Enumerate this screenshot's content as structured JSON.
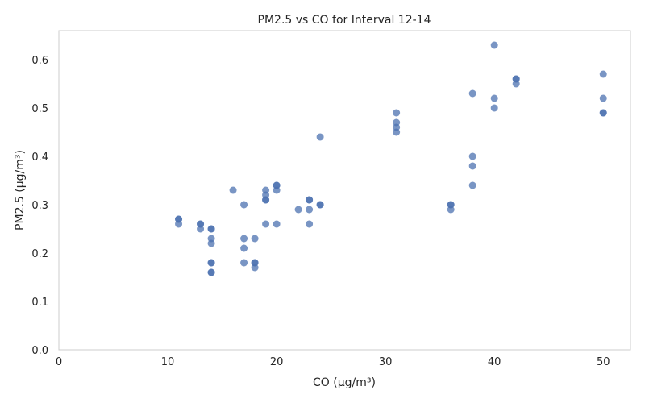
{
  "chart_data": {
    "type": "scatter",
    "title": "PM2.5 vs CO for Interval 12-14",
    "xlabel": "CO (µg/m³)",
    "ylabel": "PM2.5 (µg/m³)",
    "xlim": [
      0,
      52.5
    ],
    "ylim": [
      0,
      0.66
    ],
    "x_ticks": [
      0,
      10,
      20,
      30,
      40,
      50
    ],
    "y_ticks": [
      0.0,
      0.1,
      0.2,
      0.3,
      0.4,
      0.5,
      0.6
    ],
    "x_tick_labels": [
      "0",
      "10",
      "20",
      "30",
      "40",
      "50"
    ],
    "y_tick_labels": [
      "0.0",
      "0.1",
      "0.2",
      "0.3",
      "0.4",
      "0.5",
      "0.6"
    ],
    "grid": false,
    "marker_color": "#4c72b0",
    "marker_alpha": 0.75,
    "points": [
      {
        "x": 11,
        "y": 0.27
      },
      {
        "x": 11,
        "y": 0.27
      },
      {
        "x": 11,
        "y": 0.26
      },
      {
        "x": 13,
        "y": 0.26
      },
      {
        "x": 13,
        "y": 0.26
      },
      {
        "x": 13,
        "y": 0.25
      },
      {
        "x": 14,
        "y": 0.25
      },
      {
        "x": 14,
        "y": 0.25
      },
      {
        "x": 14,
        "y": 0.23
      },
      {
        "x": 14,
        "y": 0.22
      },
      {
        "x": 14,
        "y": 0.18
      },
      {
        "x": 14,
        "y": 0.18
      },
      {
        "x": 14,
        "y": 0.16
      },
      {
        "x": 14,
        "y": 0.16
      },
      {
        "x": 16,
        "y": 0.33
      },
      {
        "x": 17,
        "y": 0.3
      },
      {
        "x": 17,
        "y": 0.23
      },
      {
        "x": 17,
        "y": 0.21
      },
      {
        "x": 17,
        "y": 0.18
      },
      {
        "x": 18,
        "y": 0.23
      },
      {
        "x": 18,
        "y": 0.18
      },
      {
        "x": 18,
        "y": 0.18
      },
      {
        "x": 18,
        "y": 0.17
      },
      {
        "x": 19,
        "y": 0.33
      },
      {
        "x": 19,
        "y": 0.32
      },
      {
        "x": 19,
        "y": 0.31
      },
      {
        "x": 19,
        "y": 0.31
      },
      {
        "x": 19,
        "y": 0.26
      },
      {
        "x": 20,
        "y": 0.34
      },
      {
        "x": 20,
        "y": 0.34
      },
      {
        "x": 20,
        "y": 0.33
      },
      {
        "x": 20,
        "y": 0.26
      },
      {
        "x": 22,
        "y": 0.29
      },
      {
        "x": 23,
        "y": 0.31
      },
      {
        "x": 23,
        "y": 0.31
      },
      {
        "x": 23,
        "y": 0.29
      },
      {
        "x": 23,
        "y": 0.26
      },
      {
        "x": 24,
        "y": 0.44
      },
      {
        "x": 24,
        "y": 0.3
      },
      {
        "x": 24,
        "y": 0.3
      },
      {
        "x": 31,
        "y": 0.49
      },
      {
        "x": 31,
        "y": 0.47
      },
      {
        "x": 31,
        "y": 0.46
      },
      {
        "x": 31,
        "y": 0.45
      },
      {
        "x": 36,
        "y": 0.3
      },
      {
        "x": 36,
        "y": 0.3
      },
      {
        "x": 36,
        "y": 0.29
      },
      {
        "x": 38,
        "y": 0.53
      },
      {
        "x": 38,
        "y": 0.4
      },
      {
        "x": 38,
        "y": 0.38
      },
      {
        "x": 38,
        "y": 0.34
      },
      {
        "x": 40,
        "y": 0.63
      },
      {
        "x": 40,
        "y": 0.52
      },
      {
        "x": 40,
        "y": 0.5
      },
      {
        "x": 42,
        "y": 0.56
      },
      {
        "x": 42,
        "y": 0.56
      },
      {
        "x": 42,
        "y": 0.55
      },
      {
        "x": 50,
        "y": 0.57
      },
      {
        "x": 50,
        "y": 0.52
      },
      {
        "x": 50,
        "y": 0.49
      },
      {
        "x": 50,
        "y": 0.49
      }
    ]
  }
}
